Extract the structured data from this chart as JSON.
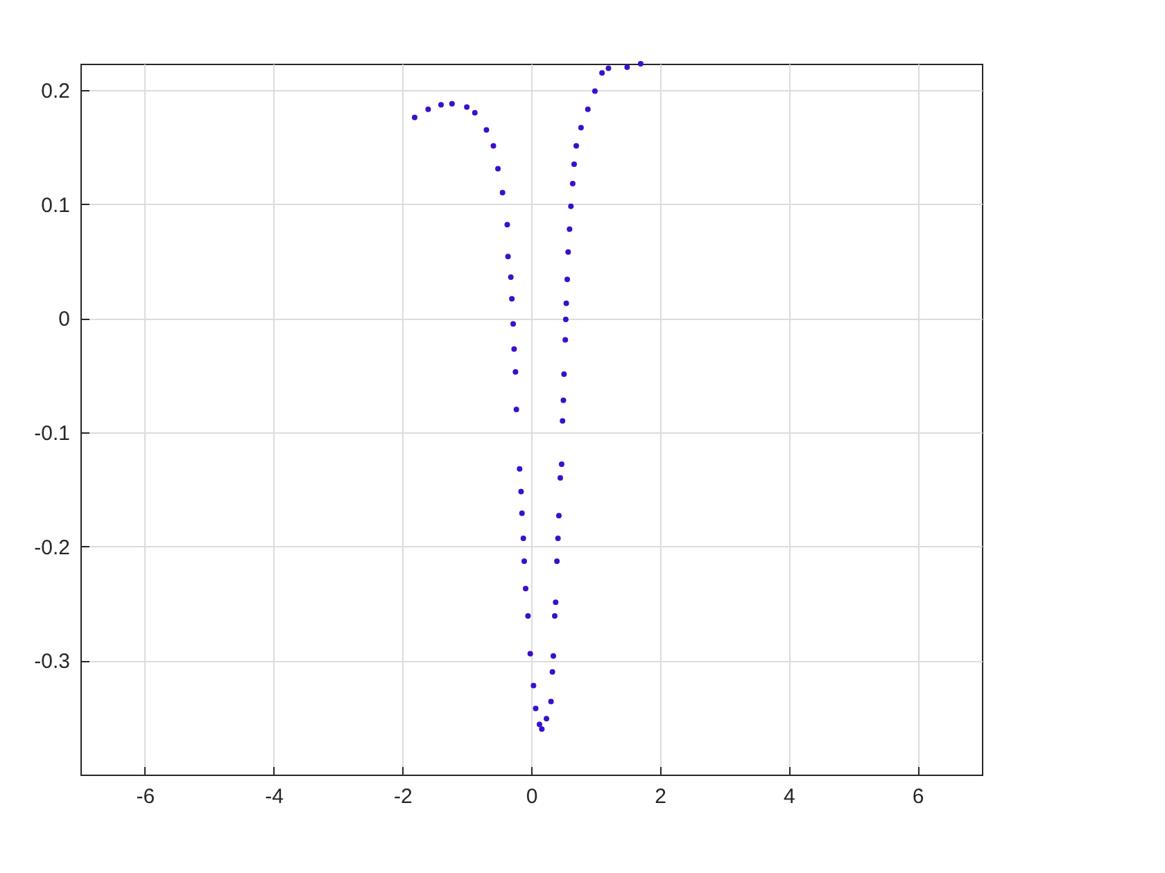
{
  "chart_data": {
    "type": "scatter",
    "marker": "circle",
    "grid": true,
    "xlim": [
      -7,
      7
    ],
    "ylim": [
      -0.4,
      0.223
    ],
    "xticks": [
      -6,
      -4,
      -2,
      0,
      2,
      4,
      6
    ],
    "yticks": [
      -0.3,
      -0.2,
      -0.1,
      0,
      0.1,
      0.2
    ],
    "series": [
      {
        "color": "#3a10cc",
        "x": [
          -1.81,
          -1.6,
          -1.4,
          -1.23,
          -1.0,
          -0.875,
          -0.695,
          -0.587,
          -0.516,
          -0.445,
          -0.372,
          -0.36,
          -0.316,
          -0.3,
          -0.28,
          -0.265,
          -0.244,
          -0.23,
          -0.18,
          -0.157,
          -0.143,
          -0.122,
          -0.108,
          -0.086,
          -0.05,
          -0.014,
          0.036,
          0.07,
          0.129,
          0.165,
          0.237,
          0.308,
          0.33,
          0.344,
          0.366,
          0.38,
          0.4,
          0.416,
          0.43,
          0.452,
          0.473,
          0.487,
          0.5,
          0.51,
          0.53,
          0.537,
          0.545,
          0.56,
          0.574,
          0.596,
          0.617,
          0.645,
          0.667,
          0.7,
          0.774,
          0.88,
          0.99,
          1.1,
          1.2,
          1.49,
          1.7
        ],
        "values": [
          0.176,
          0.183,
          0.187,
          0.188,
          0.185,
          0.18,
          0.165,
          0.151,
          0.131,
          0.11,
          0.082,
          0.054,
          0.036,
          0.017,
          -0.005,
          -0.027,
          -0.047,
          -0.08,
          -0.132,
          -0.152,
          -0.171,
          -0.193,
          -0.213,
          -0.237,
          -0.261,
          -0.294,
          -0.322,
          -0.342,
          -0.356,
          -0.36,
          -0.351,
          -0.336,
          -0.31,
          -0.296,
          -0.261,
          -0.249,
          -0.213,
          -0.193,
          -0.173,
          -0.14,
          -0.128,
          -0.09,
          -0.072,
          -0.049,
          -0.019,
          -0.001,
          0.013,
          0.034,
          0.058,
          0.078,
          0.098,
          0.118,
          0.135,
          0.151,
          0.167,
          0.183,
          0.199,
          0.215,
          0.219,
          0.22,
          0.223
        ]
      }
    ]
  }
}
